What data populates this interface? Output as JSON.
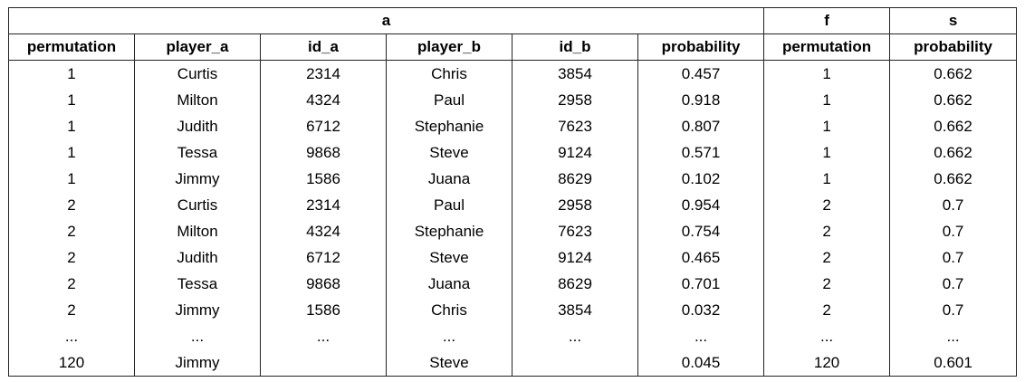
{
  "groups": [
    "a",
    "f",
    "s"
  ],
  "columns": [
    "permutation",
    "player_a",
    "id_a",
    "player_b",
    "id_b",
    "probability",
    "permutation",
    "probability"
  ],
  "rows": [
    [
      "1",
      "Curtis",
      "2314",
      "Chris",
      "3854",
      "0.457",
      "1",
      "0.662"
    ],
    [
      "1",
      "Milton",
      "4324",
      "Paul",
      "2958",
      "0.918",
      "1",
      "0.662"
    ],
    [
      "1",
      "Judith",
      "6712",
      "Stephanie",
      "7623",
      "0.807",
      "1",
      "0.662"
    ],
    [
      "1",
      "Tessa",
      "9868",
      "Steve",
      "9124",
      "0.571",
      "1",
      "0.662"
    ],
    [
      "1",
      "Jimmy",
      "1586",
      "Juana",
      "8629",
      "0.102",
      "1",
      "0.662"
    ],
    [
      "2",
      "Curtis",
      "2314",
      "Paul",
      "2958",
      "0.954",
      "2",
      "0.7"
    ],
    [
      "2",
      "Milton",
      "4324",
      "Stephanie",
      "7623",
      "0.754",
      "2",
      "0.7"
    ],
    [
      "2",
      "Judith",
      "6712",
      "Steve",
      "9124",
      "0.465",
      "2",
      "0.7"
    ],
    [
      "2",
      "Tessa",
      "9868",
      "Juana",
      "8629",
      "0.701",
      "2",
      "0.7"
    ],
    [
      "2",
      "Jimmy",
      "1586",
      "Chris",
      "3854",
      "0.032",
      "2",
      "0.7"
    ],
    [
      "...",
      "...",
      "...",
      "...",
      "...",
      "...",
      "...",
      "..."
    ],
    [
      "120",
      "Jimmy",
      "",
      "Steve",
      "",
      "0.045",
      "120",
      "0.601"
    ]
  ]
}
